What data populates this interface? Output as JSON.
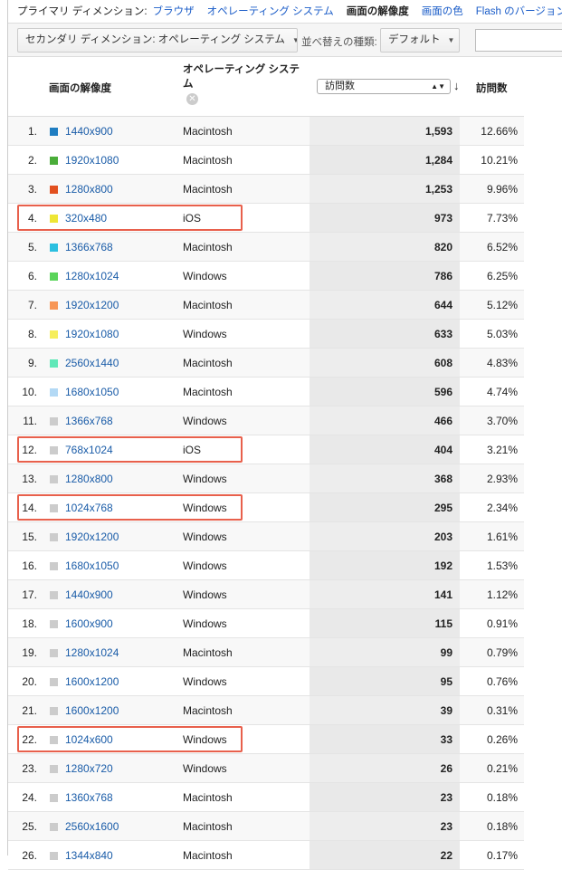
{
  "primary": {
    "label": "プライマリ ディメンション:",
    "items": [
      "ブラウザ",
      "オペレーティング システム",
      "画面の解像度",
      "画面の色",
      "Flash のバージョン"
    ],
    "selected": 2
  },
  "toolbar": {
    "secondary": "セカンダリ ディメンション: オペレーティング システム",
    "sort_label": "並べ替えの種類:",
    "sort_value": "デフォルト",
    "search_value": ""
  },
  "columns": {
    "resolution": "画面の解像度",
    "os": "オペレーティング システム",
    "metric_select": "訪問数",
    "visits": "訪問数"
  },
  "rows": [
    {
      "n": "1.",
      "res": "1440x900",
      "os": "Macintosh",
      "v": "1,593",
      "p": "12.66%",
      "c": "#1f7dc1"
    },
    {
      "n": "2.",
      "res": "1920x1080",
      "os": "Macintosh",
      "v": "1,284",
      "p": "10.21%",
      "c": "#4aad39"
    },
    {
      "n": "3.",
      "res": "1280x800",
      "os": "Macintosh",
      "v": "1,253",
      "p": "9.96%",
      "c": "#e2501f"
    },
    {
      "n": "4.",
      "res": "320x480",
      "os": "iOS",
      "v": "973",
      "p": "7.73%",
      "c": "#eee635",
      "hl": true
    },
    {
      "n": "5.",
      "res": "1366x768",
      "os": "Macintosh",
      "v": "820",
      "p": "6.52%",
      "c": "#2bbfe0"
    },
    {
      "n": "6.",
      "res": "1280x1024",
      "os": "Windows",
      "v": "786",
      "p": "6.25%",
      "c": "#5ad45a"
    },
    {
      "n": "7.",
      "res": "1920x1200",
      "os": "Macintosh",
      "v": "644",
      "p": "5.12%",
      "c": "#f79656"
    },
    {
      "n": "8.",
      "res": "1920x1080",
      "os": "Windows",
      "v": "633",
      "p": "5.03%",
      "c": "#f6ee5c"
    },
    {
      "n": "9.",
      "res": "2560x1440",
      "os": "Macintosh",
      "v": "608",
      "p": "4.83%",
      "c": "#60e8b8"
    },
    {
      "n": "10.",
      "res": "1680x1050",
      "os": "Macintosh",
      "v": "596",
      "p": "4.74%",
      "c": "#b3d9f5"
    },
    {
      "n": "11.",
      "res": "1366x768",
      "os": "Windows",
      "v": "466",
      "p": "3.70%",
      "c": "#cccccc"
    },
    {
      "n": "12.",
      "res": "768x1024",
      "os": "iOS",
      "v": "404",
      "p": "3.21%",
      "c": "#cccccc",
      "hl": true
    },
    {
      "n": "13.",
      "res": "1280x800",
      "os": "Windows",
      "v": "368",
      "p": "2.93%",
      "c": "#cccccc"
    },
    {
      "n": "14.",
      "res": "1024x768",
      "os": "Windows",
      "v": "295",
      "p": "2.34%",
      "c": "#cccccc",
      "hl": true
    },
    {
      "n": "15.",
      "res": "1920x1200",
      "os": "Windows",
      "v": "203",
      "p": "1.61%",
      "c": "#cccccc"
    },
    {
      "n": "16.",
      "res": "1680x1050",
      "os": "Windows",
      "v": "192",
      "p": "1.53%",
      "c": "#cccccc"
    },
    {
      "n": "17.",
      "res": "1440x900",
      "os": "Windows",
      "v": "141",
      "p": "1.12%",
      "c": "#cccccc"
    },
    {
      "n": "18.",
      "res": "1600x900",
      "os": "Windows",
      "v": "115",
      "p": "0.91%",
      "c": "#cccccc"
    },
    {
      "n": "19.",
      "res": "1280x1024",
      "os": "Macintosh",
      "v": "99",
      "p": "0.79%",
      "c": "#cccccc"
    },
    {
      "n": "20.",
      "res": "1600x1200",
      "os": "Windows",
      "v": "95",
      "p": "0.76%",
      "c": "#cccccc"
    },
    {
      "n": "21.",
      "res": "1600x1200",
      "os": "Macintosh",
      "v": "39",
      "p": "0.31%",
      "c": "#cccccc"
    },
    {
      "n": "22.",
      "res": "1024x600",
      "os": "Windows",
      "v": "33",
      "p": "0.26%",
      "c": "#cccccc",
      "hl": true
    },
    {
      "n": "23.",
      "res": "1280x720",
      "os": "Windows",
      "v": "26",
      "p": "0.21%",
      "c": "#cccccc"
    },
    {
      "n": "24.",
      "res": "1360x768",
      "os": "Macintosh",
      "v": "23",
      "p": "0.18%",
      "c": "#cccccc"
    },
    {
      "n": "25.",
      "res": "2560x1600",
      "os": "Macintosh",
      "v": "23",
      "p": "0.18%",
      "c": "#cccccc"
    },
    {
      "n": "26.",
      "res": "1344x840",
      "os": "Macintosh",
      "v": "22",
      "p": "0.17%",
      "c": "#cccccc"
    }
  ]
}
